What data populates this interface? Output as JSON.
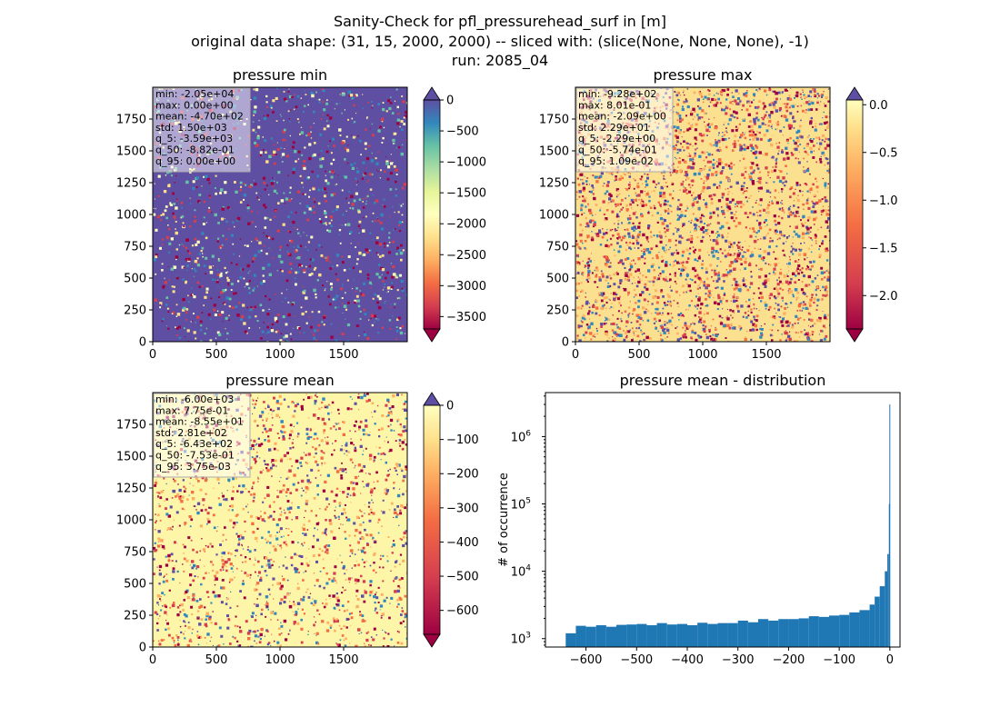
{
  "suptitle": {
    "line1": "Sanity-Check for pfl_pressurehead_surf in [m]",
    "line2": "original data shape: (31, 15, 2000, 2000) -- sliced with: (slice(None, None, None), -1)",
    "line3": "run: 2085_04"
  },
  "chart_data": [
    {
      "type": "heatmap",
      "title": "pressure min",
      "xlim": [
        0,
        2000
      ],
      "ylim": [
        0,
        2000
      ],
      "xticks": [
        "0",
        "500",
        "1000",
        "1500"
      ],
      "yticks": [
        "0",
        "250",
        "500",
        "750",
        "1000",
        "1250",
        "1500",
        "1750"
      ],
      "colormap": "Spectral",
      "background_color": "#5e4fa2",
      "colorbar": {
        "range": [
          -3700,
          0
        ],
        "extend": "both",
        "ticks": [
          "0",
          "−500",
          "−1000",
          "−1500",
          "−2000",
          "−2500",
          "−3000",
          "−3500"
        ]
      },
      "stats": [
        "min: -2.05e+04",
        "max: 0.00e+00",
        "mean: -4.70e+02",
        "std: 1.50e+03",
        "q_5: -3.59e+03",
        "q_50: -8.82e-01",
        "q_95: 0.00e+00"
      ]
    },
    {
      "type": "heatmap",
      "title": "pressure max",
      "xlim": [
        0,
        2000
      ],
      "ylim": [
        0,
        2000
      ],
      "xticks": [
        "0",
        "500",
        "1000",
        "1500"
      ],
      "yticks": [
        "0",
        "250",
        "500",
        "750",
        "1000",
        "1250",
        "1500",
        "1750"
      ],
      "colormap": "Spectral",
      "background_color": "#fbe090",
      "colorbar": {
        "range": [
          -2.35,
          0.05
        ],
        "extend": "both",
        "ticks": [
          "0.0",
          "−0.5",
          "−1.0",
          "−1.5",
          "−2.0"
        ]
      },
      "stats": [
        "min: -9.28e+02",
        "max: 8.01e-01",
        "mean: -2.09e+00",
        "std: 2.29e+01",
        "q_5: -2.29e+00",
        "q_50: -5.74e-01",
        "q_95: 1.09e-02"
      ]
    },
    {
      "type": "heatmap",
      "title": "pressure mean",
      "xlim": [
        0,
        2000
      ],
      "ylim": [
        0,
        2000
      ],
      "xticks": [
        "0",
        "500",
        "1000",
        "1500"
      ],
      "yticks": [
        "0",
        "250",
        "500",
        "750",
        "1000",
        "1250",
        "1500",
        "1750"
      ],
      "colormap": "Spectral",
      "background_color": "#fdf5a8",
      "colorbar": {
        "range": [
          -670,
          0
        ],
        "extend": "both",
        "ticks": [
          "0",
          "−100",
          "−200",
          "−300",
          "−400",
          "−500",
          "−600"
        ]
      },
      "stats": [
        "min: -6.00e+03",
        "max: 7.75e-01",
        "mean: -8.55e+01",
        "std: 2.81e+02",
        "q_5: -6.43e+02",
        "q_50: -7.53e-01",
        "q_95: 3.75e-03"
      ]
    },
    {
      "type": "bar",
      "title": "pressure mean - distribution",
      "ylabel": "# of occurrence",
      "yscale": "log",
      "xlim": [
        -680,
        20
      ],
      "ylim": [
        750,
        4500000
      ],
      "xticks": [
        "−600",
        "−500",
        "−400",
        "−300",
        "−200",
        "−100",
        "0"
      ],
      "yticks": [
        "10^3",
        "10^4",
        "10^5",
        "10^6"
      ],
      "bar_color": "#1f77b4",
      "bins": [
        [
          -640,
          1200
        ],
        [
          -620,
          1550
        ],
        [
          -600,
          1500
        ],
        [
          -580,
          1580
        ],
        [
          -560,
          1500
        ],
        [
          -540,
          1600
        ],
        [
          -520,
          1620
        ],
        [
          -500,
          1650
        ],
        [
          -480,
          1580
        ],
        [
          -460,
          1700
        ],
        [
          -440,
          1620
        ],
        [
          -420,
          1650
        ],
        [
          -400,
          1580
        ],
        [
          -380,
          1720
        ],
        [
          -360,
          1650
        ],
        [
          -340,
          1700
        ],
        [
          -320,
          1700
        ],
        [
          -300,
          1850
        ],
        [
          -280,
          1750
        ],
        [
          -260,
          1950
        ],
        [
          -240,
          1850
        ],
        [
          -220,
          1950
        ],
        [
          -200,
          1950
        ],
        [
          -180,
          2000
        ],
        [
          -160,
          2150
        ],
        [
          -140,
          2100
        ],
        [
          -120,
          2200
        ],
        [
          -100,
          2250
        ],
        [
          -80,
          2450
        ],
        [
          -60,
          2650
        ],
        [
          -40,
          3200
        ],
        [
          -30,
          4200
        ],
        [
          -20,
          6000
        ],
        [
          -10,
          10000
        ],
        [
          -5,
          18000
        ],
        [
          -2,
          100000
        ],
        [
          -1,
          3000000
        ]
      ]
    }
  ]
}
